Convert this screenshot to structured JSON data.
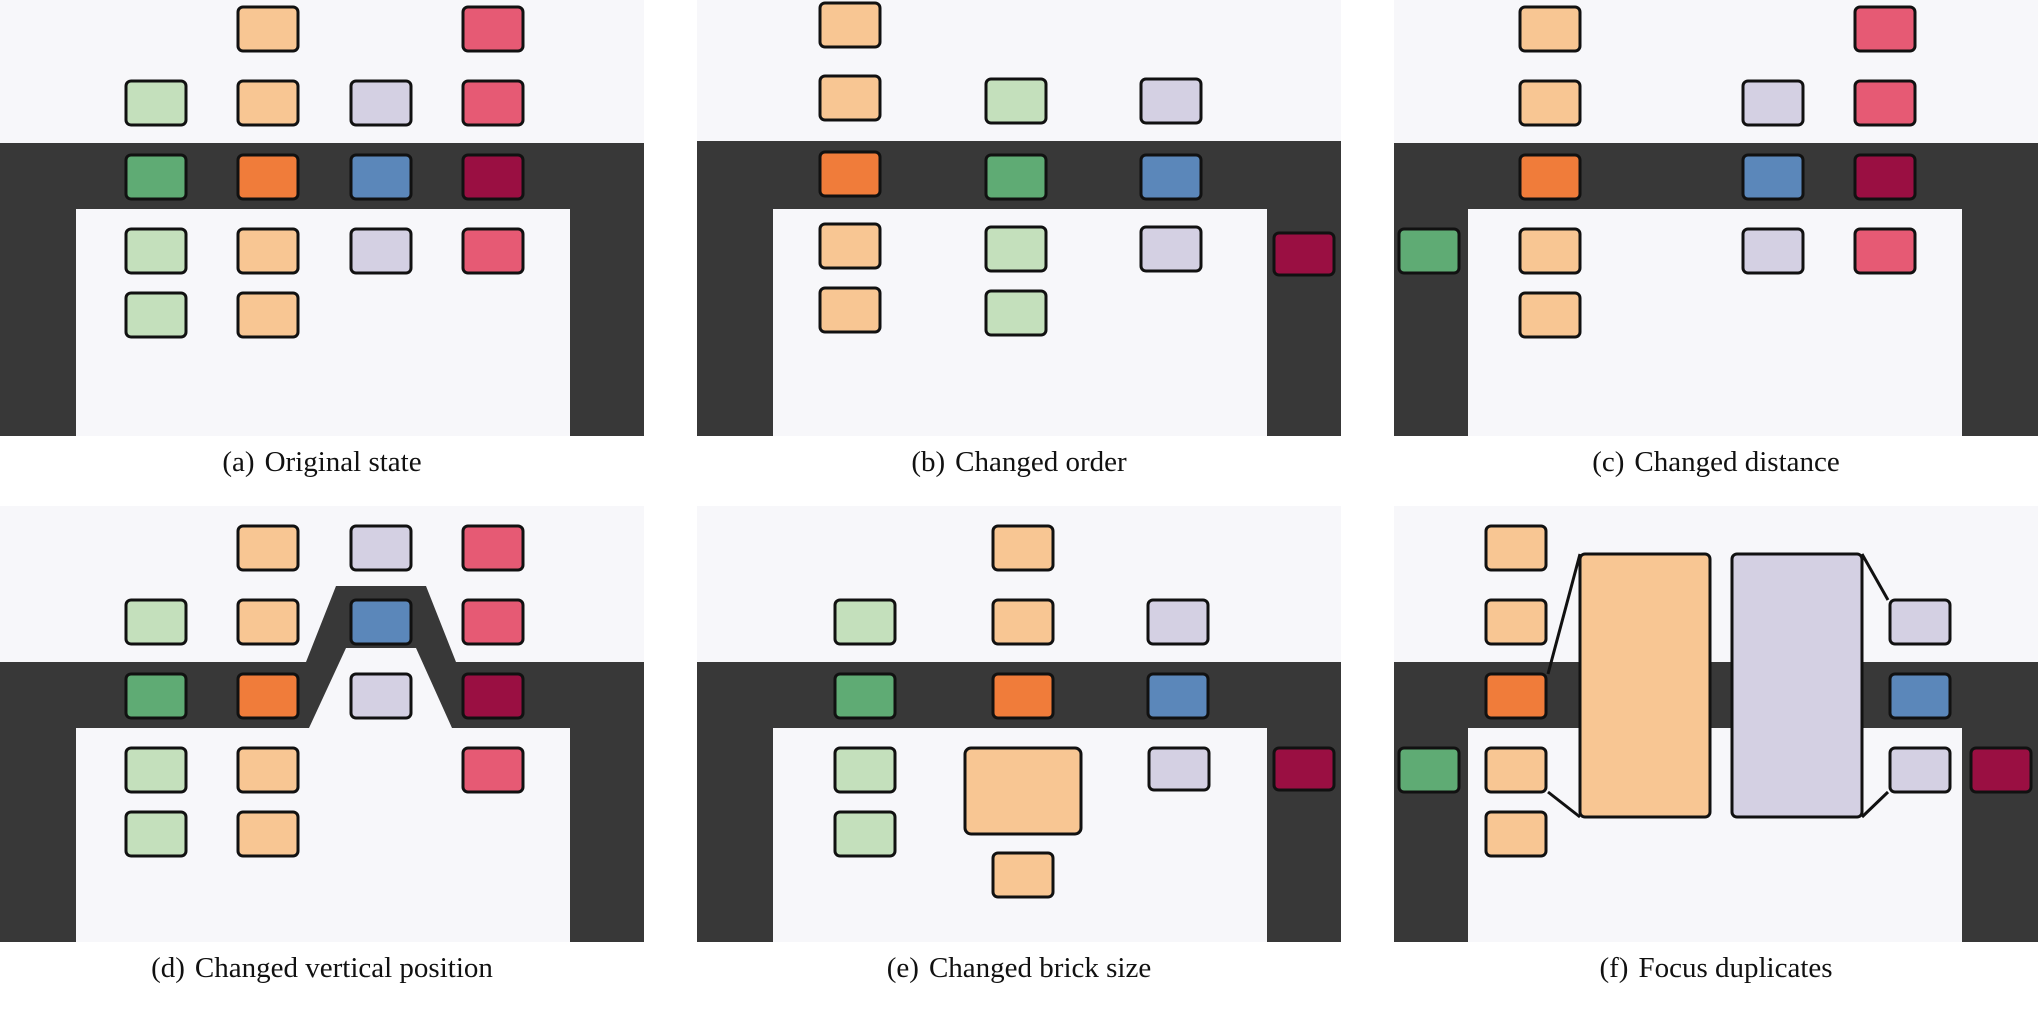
{
  "colors": {
    "background_light": "#f7f7fa",
    "dark_band": "#383838",
    "brick_stroke": "#111111",
    "green_light": "#c4e0bc",
    "green_dark": "#5fab74",
    "orange_light": "#f8c693",
    "orange_dark": "#f07c3a",
    "lilac_light": "#d4d0e3",
    "blue_dark": "#5b87ba",
    "pink_light": "#e65a74",
    "crimson_dark": "#9a0f42"
  },
  "panels": [
    {
      "id": "a",
      "tag": "(a)",
      "title": "Original state"
    },
    {
      "id": "b",
      "tag": "(b)",
      "title": "Changed order"
    },
    {
      "id": "c",
      "tag": "(c)",
      "title": "Changed distance"
    },
    {
      "id": "d",
      "tag": "(d)",
      "title": "Changed vertical position"
    },
    {
      "id": "e",
      "tag": "(e)",
      "title": "Changed brick size"
    },
    {
      "id": "f",
      "tag": "(f)",
      "title": "Focus duplicates"
    }
  ]
}
